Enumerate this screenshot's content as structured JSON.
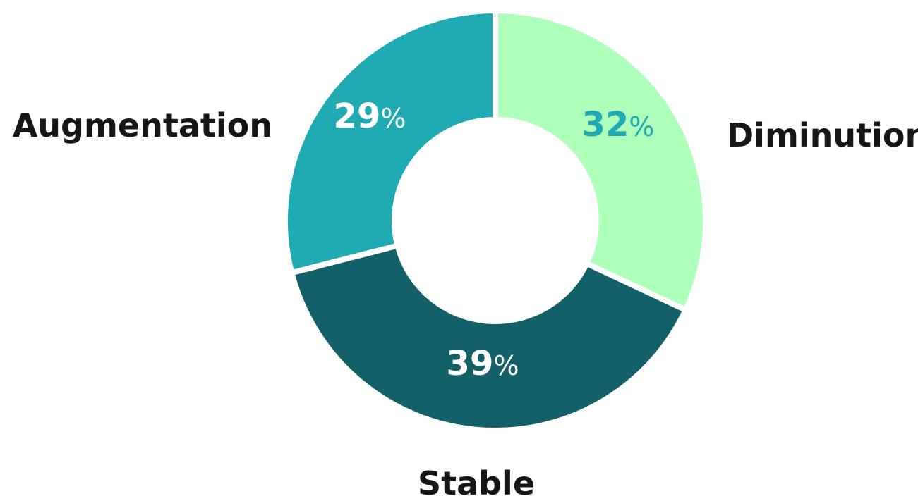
{
  "chart_data": {
    "type": "pie",
    "variant": "donut",
    "title": "",
    "categories": [
      "Diminution",
      "Stable",
      "Augmentation"
    ],
    "values": [
      32,
      39,
      29
    ],
    "unit": "%",
    "colors": [
      "#ADFFB9",
      "#136068",
      "#20AAB3"
    ],
    "label_colors": [
      "#20AAB3",
      "#FFFFFF",
      "#FFFFFF"
    ],
    "value_labels": [
      {
        "number": "32",
        "sign": "%"
      },
      {
        "number": "39",
        "sign": "%"
      },
      {
        "number": "29",
        "sign": "%"
      }
    ],
    "legend": "none"
  }
}
